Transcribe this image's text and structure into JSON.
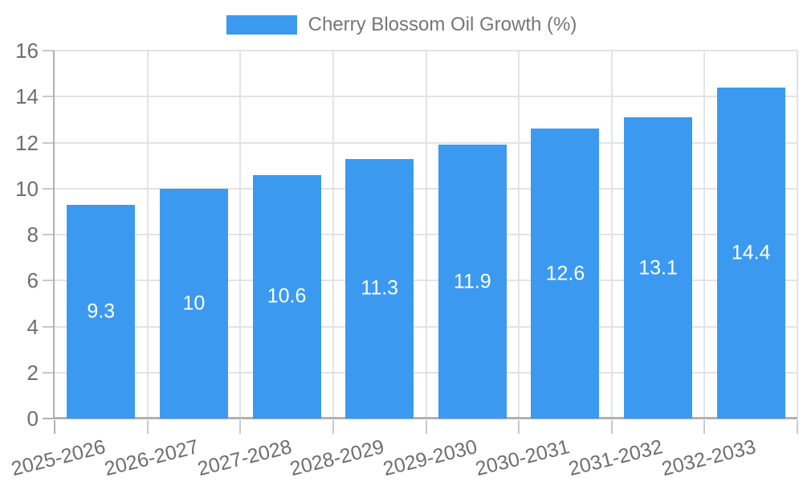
{
  "legend": {
    "label": "Cherry Blossom Oil Growth (%)"
  },
  "chart_data": {
    "type": "bar",
    "title": "",
    "categories": [
      "2025-2026",
      "2026-2027",
      "2027-2028",
      "2028-2029",
      "2029-2030",
      "2030-2031",
      "2031-2032",
      "2032-2033"
    ],
    "series": [
      {
        "name": "Cherry Blossom Oil Growth (%)",
        "values": [
          9.3,
          10,
          10.6,
          11.3,
          11.9,
          12.6,
          13.1,
          14.4
        ],
        "value_labels": [
          "9.3",
          "10",
          "10.6",
          "11.3",
          "11.9",
          "12.6",
          "13.1",
          "14.4"
        ]
      }
    ],
    "xlabel": "",
    "ylabel": "",
    "ylim": [
      0,
      16
    ],
    "ytick_step": 2,
    "yticks": [
      0,
      2,
      4,
      6,
      8,
      10,
      12,
      14,
      16
    ],
    "grid": true,
    "legend_position": "top",
    "colors": {
      "bar": "#3B9AEF",
      "grid": "#E3E3E3",
      "tick": "#C9C9C9",
      "axis": "#B1B1B1",
      "axis_label_text": "#6E6E6E",
      "legend_text": "#767676",
      "value_label_text": "#FFFFFF",
      "background": "#FFFFFF"
    }
  }
}
